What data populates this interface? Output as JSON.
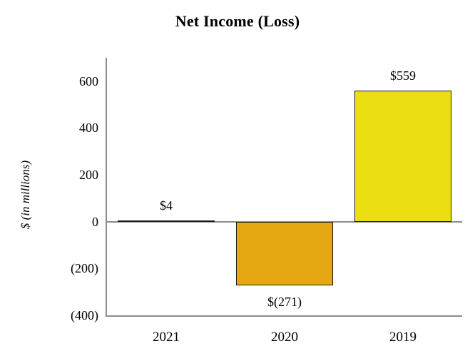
{
  "chart_data": {
    "type": "bar",
    "title": "Net Income (Loss)",
    "ylabel": "$ (in millions)",
    "xlabel": "",
    "categories": [
      "2021",
      "2020",
      "2019"
    ],
    "series": [
      {
        "name": "Net Income (Loss)",
        "values": [
          4,
          -271,
          559
        ]
      }
    ],
    "bar_value_labels": [
      "$4",
      "$(271)",
      "$559"
    ],
    "bar_colors": [
      "#ebdf12",
      "#e5a812",
      "#ebdf12"
    ],
    "bar_border_color": "#1a1a1a",
    "axis_color": "#8c8c8c",
    "text_color": "#000000",
    "background_color": "#ffffff",
    "ylim": [
      -400,
      700
    ],
    "yticks": [
      {
        "value": 600,
        "label": "600"
      },
      {
        "value": 400,
        "label": "400"
      },
      {
        "value": 200,
        "label": "200"
      },
      {
        "value": 0,
        "label": "0"
      },
      {
        "value": -200,
        "label": "(200)"
      },
      {
        "value": -400,
        "label": "(400)"
      }
    ],
    "grid": false,
    "legend": false
  }
}
